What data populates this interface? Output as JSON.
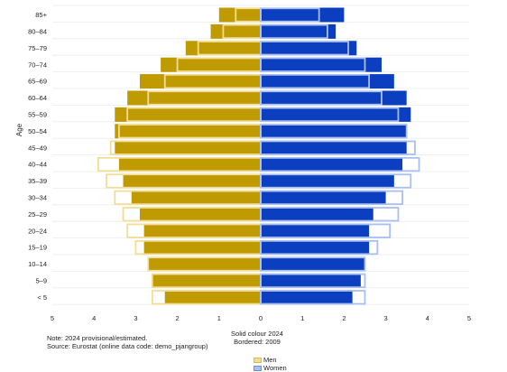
{
  "chart_data": {
    "type": "bar",
    "orientation": "horizontal-pyramid",
    "ylabel": "Age",
    "categories": [
      "85+",
      "80–84",
      "75–79",
      "70–74",
      "65–69",
      "60–64",
      "55–59",
      "50–54",
      "45–49",
      "40–44",
      "35–39",
      "30–34",
      "25–29",
      "20–24",
      "15–19",
      "10–14",
      "5–9",
      "< 5"
    ],
    "x_ticks": [
      "5",
      "4",
      "3",
      "2",
      "1",
      "0",
      "1",
      "2",
      "3",
      "4",
      "5"
    ],
    "xlim": [
      -5,
      5
    ],
    "grid": true,
    "series": [
      {
        "name": "Men",
        "year": "2024",
        "style": "solid",
        "values": [
          1.0,
          1.2,
          1.8,
          2.4,
          2.9,
          3.2,
          3.5,
          3.5,
          3.5,
          3.4,
          3.3,
          3.1,
          2.9,
          2.8,
          2.8,
          2.7,
          2.6,
          2.3
        ]
      },
      {
        "name": "Women",
        "year": "2024",
        "style": "solid",
        "values": [
          2.0,
          1.8,
          2.3,
          2.9,
          3.2,
          3.5,
          3.6,
          3.5,
          3.5,
          3.4,
          3.2,
          3.0,
          2.7,
          2.6,
          2.6,
          2.5,
          2.4,
          2.2
        ]
      },
      {
        "name": "Men",
        "year": "2009",
        "style": "bordered",
        "values": [
          0.6,
          0.9,
          1.5,
          2.0,
          2.3,
          2.7,
          3.2,
          3.4,
          3.6,
          3.9,
          3.7,
          3.5,
          3.3,
          3.2,
          3.0,
          2.7,
          2.6,
          2.6
        ]
      },
      {
        "name": "Women",
        "year": "2009",
        "style": "bordered",
        "values": [
          1.4,
          1.6,
          2.1,
          2.5,
          2.6,
          2.9,
          3.3,
          3.5,
          3.7,
          3.8,
          3.6,
          3.4,
          3.3,
          3.1,
          2.8,
          2.5,
          2.5,
          2.5
        ]
      }
    ],
    "colors": {
      "men_solid": "#bf9a00",
      "women_solid": "#0b3fbf",
      "men_border": "#f2dd96",
      "women_border": "#a8bff0",
      "grid": "#ececec"
    }
  },
  "annotations": {
    "center_line1": "Solid colour 2024",
    "center_line2": "Bordered: 2009",
    "note": "Note: 2024 provisional/estimated.",
    "source": "Source: Eurostat (online data code: demo_pjangroup)"
  },
  "legend": {
    "men": "Men",
    "women": "Women"
  }
}
